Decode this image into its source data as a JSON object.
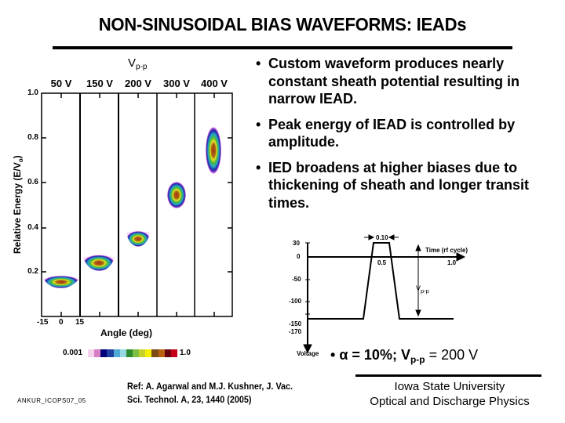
{
  "slide": {
    "title": "NON-SINUSOIDAL BIAS WAVEFORMS: IEADs",
    "bullets": [
      "Custom waveform produces nearly constant sheath potential resulting in narrow IEAD.",
      "Peak energy of IEAD is controlled by amplitude.",
      "IED broadens at higher biases due to thickening of sheath and longer transit times."
    ],
    "bullet_symbol": "•",
    "condition": {
      "alpha_symbol": "α",
      "alpha_text": " = 10%; V",
      "vpp_sub": "p-p",
      "vpp_value": " = 200 V"
    },
    "footer": {
      "id": "ANKUR_ICOPS07_05",
      "ref_line1": "Ref: A. Agarwal and M.J. Kushner, J. Vac.",
      "ref_line2": "Sci. Technol. A, 23, 1440 (2005)",
      "university_line1": "Iowa State University",
      "university_line2": "Optical and Discharge Physics"
    }
  },
  "iead_plot": {
    "header_main": "V",
    "header_sub": "p-p",
    "columns": [
      "50 V",
      "150 V",
      "200 V",
      "300 V",
      "400 V"
    ],
    "ylabel_main": "Relative Energy (E/V",
    "ylabel_sub": "o",
    "ylabel_end": ")",
    "yticks": [
      "1.0",
      "0.8",
      "0.6",
      "0.4",
      "0.2"
    ],
    "xticks": [
      "-15",
      "0",
      "15"
    ],
    "xlabel": "Angle (deg)",
    "colorbar_min": "0.001",
    "colorbar_max": "1.0",
    "colorbar_colors": [
      "#f6d2ec",
      "#d77fc4",
      "#00007a",
      "#1f3fa0",
      "#4fa9d3",
      "#97d9e3",
      "#2e8b2e",
      "#7bc043",
      "#c8d12a",
      "#f4ef00",
      "#7a4b14",
      "#b8620f",
      "#6b0010",
      "#c6001a"
    ]
  },
  "waveform": {
    "y_ticks": [
      "30",
      "0",
      "-50",
      "-100",
      "-150",
      "-170"
    ],
    "x_ticks": [
      "0.5",
      "1.0"
    ],
    "x_axis_label": "Time (rf cycle)",
    "y_axis_label": "Voltage",
    "pulse_width_label": "0.10",
    "amplitude_label_main": "V",
    "amplitude_label_sub": "p-p"
  },
  "chart_data": [
    {
      "type": "heatmap",
      "title": "IEADs vs. peak-to-peak bias voltage",
      "xlabel": "Angle (deg)",
      "ylabel": "Relative Energy (E/Vo)",
      "categories": [
        "50 V",
        "150 V",
        "200 V",
        "300 V",
        "400 V"
      ],
      "x_range_per_panel": [
        -15,
        15
      ],
      "ylim": [
        0,
        1.0
      ],
      "peak_relative_energy": [
        0.16,
        0.26,
        0.36,
        0.56,
        0.77
      ],
      "energy_spread": [
        [
          0.14,
          0.17
        ],
        [
          0.23,
          0.28
        ],
        [
          0.32,
          0.38
        ],
        [
          0.5,
          0.6
        ],
        [
          0.66,
          0.86
        ]
      ],
      "colorbar": {
        "min": 0.001,
        "max": 1.0,
        "scale": "log"
      }
    },
    {
      "type": "line",
      "title": "Custom bias waveform",
      "xlabel": "Time (rf cycle)",
      "ylabel": "Voltage",
      "x": [
        0,
        0.38,
        0.45,
        0.55,
        0.62,
        1.0
      ],
      "y": [
        -170,
        -170,
        30,
        30,
        -170,
        -170
      ],
      "yticks": [
        30,
        0,
        -50,
        -100,
        -150,
        -170
      ],
      "xticks": [
        0.5,
        1.0
      ],
      "annotations": [
        "0.10",
        "Vp-p"
      ]
    }
  ]
}
